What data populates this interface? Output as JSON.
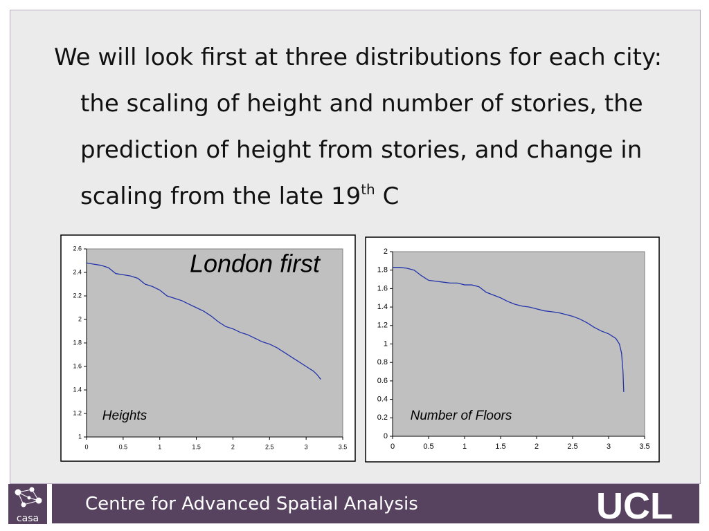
{
  "slide": {
    "text_main": "We will look first at three distributions for each city: the scaling of height and number of stories, the prediction of height from stories, and change in scaling from the late 19",
    "superscript": "th",
    "text_end": "C",
    "footer": "Centre for Advanced Spatial Analysis",
    "logo_left": "casa",
    "logo_right": "UCL"
  },
  "chart_data": [
    {
      "type": "line",
      "title": "London first",
      "annotation": "Heights",
      "color": "#2233aa",
      "x": [
        0,
        0.1,
        0.2,
        0.3,
        0.4,
        0.5,
        0.6,
        0.7,
        0.8,
        0.9,
        1.0,
        1.1,
        1.2,
        1.3,
        1.4,
        1.5,
        1.6,
        1.7,
        1.8,
        1.9,
        2.0,
        2.1,
        2.2,
        2.3,
        2.4,
        2.5,
        2.6,
        2.7,
        2.8,
        2.9,
        3.0,
        3.1,
        3.15,
        3.2
      ],
      "values": [
        2.48,
        2.47,
        2.46,
        2.44,
        2.39,
        2.38,
        2.37,
        2.35,
        2.3,
        2.28,
        2.25,
        2.2,
        2.18,
        2.16,
        2.13,
        2.1,
        2.07,
        2.03,
        1.98,
        1.94,
        1.92,
        1.89,
        1.87,
        1.84,
        1.81,
        1.79,
        1.76,
        1.72,
        1.68,
        1.64,
        1.6,
        1.56,
        1.53,
        1.49
      ],
      "xlim": [
        0,
        3.5
      ],
      "xticks": [
        0,
        0.5,
        1,
        1.5,
        2,
        2.5,
        3,
        3.5
      ],
      "ylim": [
        1,
        2.6
      ],
      "yticks": [
        1,
        1.2,
        1.4,
        1.6,
        1.8,
        2,
        2.2,
        2.4,
        2.6
      ]
    },
    {
      "type": "line",
      "annotation": "Number of Floors",
      "color": "#2233aa",
      "x": [
        0,
        0.1,
        0.2,
        0.3,
        0.4,
        0.5,
        0.6,
        0.7,
        0.8,
        0.9,
        1.0,
        1.1,
        1.2,
        1.3,
        1.4,
        1.5,
        1.6,
        1.7,
        1.8,
        1.9,
        2.0,
        2.1,
        2.2,
        2.3,
        2.4,
        2.5,
        2.6,
        2.7,
        2.8,
        2.9,
        3.0,
        3.1,
        3.15,
        3.18,
        3.2,
        3.21
      ],
      "values": [
        1.83,
        1.83,
        1.82,
        1.8,
        1.74,
        1.69,
        1.68,
        1.67,
        1.66,
        1.66,
        1.64,
        1.64,
        1.62,
        1.56,
        1.53,
        1.5,
        1.46,
        1.43,
        1.41,
        1.4,
        1.38,
        1.36,
        1.35,
        1.34,
        1.32,
        1.3,
        1.27,
        1.23,
        1.18,
        1.14,
        1.11,
        1.06,
        1.0,
        0.9,
        0.7,
        0.48
      ],
      "xlim": [
        0,
        3.5
      ],
      "xticks": [
        0,
        0.5,
        1,
        1.5,
        2,
        2.5,
        3,
        3.5
      ],
      "ylim": [
        0,
        2
      ],
      "yticks": [
        0,
        0.2,
        0.4,
        0.6,
        0.8,
        1,
        1.2,
        1.4,
        1.6,
        1.8,
        2
      ]
    }
  ]
}
